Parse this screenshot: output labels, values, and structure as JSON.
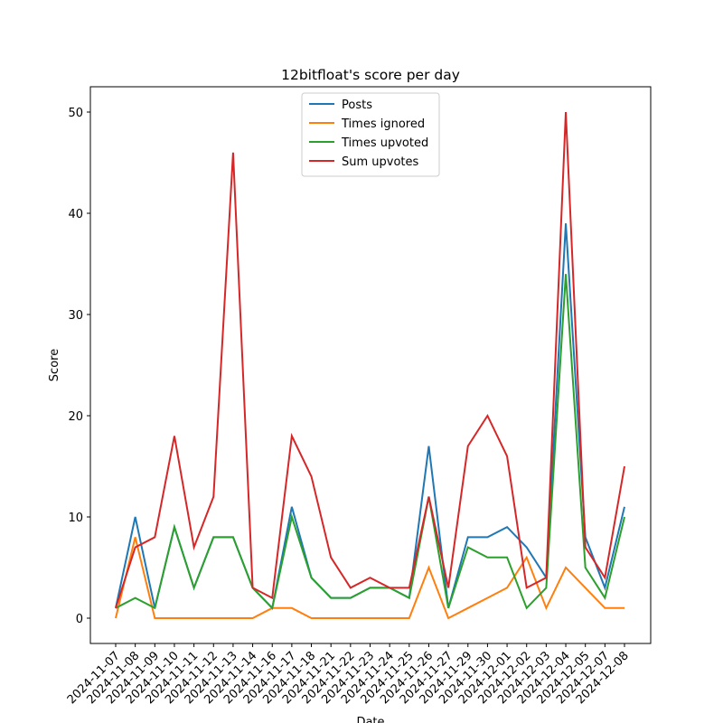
{
  "chart_data": {
    "type": "line",
    "title": "12bitfloat's score per day",
    "x_label": "Date",
    "y_label": "Score",
    "categories": [
      "2024-11-07",
      "2024-11-08",
      "2024-11-09",
      "2024-11-10",
      "2024-11-11",
      "2024-11-12",
      "2024-11-13",
      "2024-11-14",
      "2024-11-16",
      "2024-11-17",
      "2024-11-18",
      "2024-11-21",
      "2024-11-22",
      "2024-11-23",
      "2024-11-24",
      "2024-11-25",
      "2024-11-26",
      "2024-11-27",
      "2024-11-29",
      "2024-11-30",
      "2024-12-01",
      "2024-12-02",
      "2024-12-03",
      "2024-12-04",
      "2024-12-05",
      "2024-12-07",
      "2024-12-08"
    ],
    "series": [
      {
        "name": "Posts",
        "color": "#1f77b4",
        "values": [
          1,
          10,
          1,
          9,
          3,
          8,
          8,
          3,
          1,
          11,
          4,
          2,
          2,
          3,
          3,
          2,
          17,
          1,
          8,
          8,
          9,
          7,
          4,
          39,
          8,
          3,
          11
        ]
      },
      {
        "name": "Times ignored",
        "color": "#ff7f0e",
        "values": [
          0,
          8,
          0,
          0,
          0,
          0,
          0,
          0,
          1,
          1,
          0,
          0,
          0,
          0,
          0,
          0,
          5,
          0,
          1,
          2,
          3,
          6,
          1,
          5,
          3,
          1,
          1
        ]
      },
      {
        "name": "Times upvoted",
        "color": "#2ca02c",
        "values": [
          1,
          2,
          1,
          9,
          3,
          8,
          8,
          3,
          1,
          10,
          4,
          2,
          2,
          3,
          3,
          2,
          12,
          1,
          7,
          6,
          6,
          1,
          3,
          34,
          5,
          2,
          10
        ]
      },
      {
        "name": "Sum upvotes",
        "color": "#d62728",
        "values": [
          1,
          7,
          8,
          18,
          7,
          12,
          46,
          3,
          2,
          18,
          14,
          6,
          3,
          4,
          3,
          3,
          12,
          3,
          17,
          20,
          16,
          3,
          4,
          50,
          7,
          4,
          15
        ]
      }
    ],
    "ylim": [
      -2.5,
      52.5
    ],
    "yticks": [
      0,
      10,
      20,
      30,
      40,
      50
    ],
    "legend": "upper center"
  }
}
